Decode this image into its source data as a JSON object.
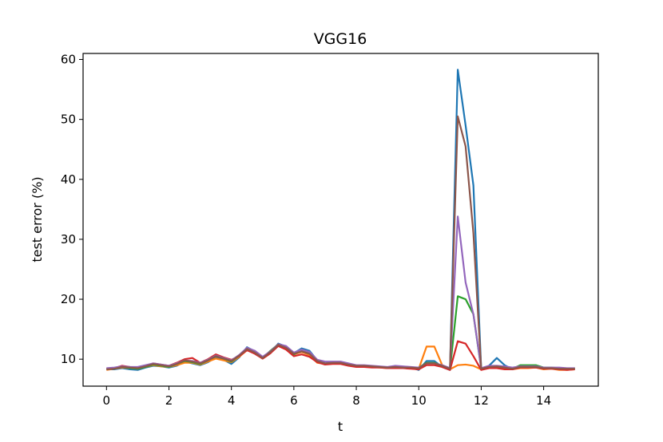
{
  "chart_data": {
    "type": "line",
    "title": "VGG16",
    "xlabel": "t",
    "ylabel": "test error (%)",
    "xlim": [
      -0.75,
      15.75
    ],
    "ylim": [
      5.5,
      61.0
    ],
    "xticks": [
      0,
      2,
      4,
      6,
      8,
      10,
      12,
      14
    ],
    "yticks": [
      10,
      20,
      30,
      40,
      50,
      60
    ],
    "grid": false,
    "legend": "none",
    "x": [
      0,
      0.25,
      0.5,
      0.75,
      1,
      1.25,
      1.5,
      1.75,
      2,
      2.25,
      2.5,
      2.75,
      3,
      3.25,
      3.5,
      3.75,
      4,
      4.25,
      4.5,
      4.75,
      5,
      5.25,
      5.5,
      5.75,
      6,
      6.25,
      6.5,
      6.75,
      7,
      7.25,
      7.5,
      7.75,
      8,
      8.25,
      8.5,
      8.75,
      9,
      9.25,
      9.5,
      9.75,
      10,
      10.25,
      10.5,
      10.75,
      11,
      11.25,
      11.5,
      11.75,
      12,
      12.25,
      12.5,
      12.75,
      13,
      13.25,
      13.5,
      13.75,
      14,
      14.25,
      14.5,
      14.75,
      15
    ],
    "series": [
      {
        "color": "#1f77b4",
        "values": [
          8.3,
          8.3,
          8.5,
          8.3,
          8.2,
          8.6,
          8.9,
          8.8,
          8.6,
          8.9,
          9.6,
          9.3,
          9.0,
          9.5,
          10.3,
          9.9,
          9.2,
          10.3,
          12.0,
          11.3,
          10.1,
          11.0,
          12.6,
          12.1,
          11.0,
          11.8,
          11.4,
          9.8,
          9.3,
          9.5,
          9.4,
          9.0,
          8.9,
          8.8,
          8.7,
          8.7,
          8.5,
          8.7,
          8.6,
          8.6,
          8.2,
          9.7,
          9.7,
          8.7,
          8.2,
          58.3,
          49.0,
          39.0,
          8.3,
          8.9,
          10.2,
          9.0,
          8.3,
          8.7,
          8.6,
          8.6,
          8.6,
          8.5,
          8.3,
          8.3,
          8.4
        ]
      },
      {
        "color": "#ff7f0e",
        "values": [
          8.2,
          8.4,
          8.6,
          8.5,
          8.4,
          8.7,
          9.0,
          8.8,
          8.7,
          9.0,
          9.4,
          9.4,
          9.1,
          9.6,
          10.1,
          9.8,
          9.5,
          10.4,
          11.5,
          11.0,
          10.1,
          11.0,
          12.4,
          12.0,
          10.8,
          11.2,
          10.7,
          9.4,
          9.2,
          9.3,
          9.3,
          9.0,
          8.8,
          8.8,
          8.7,
          8.6,
          8.5,
          8.6,
          8.5,
          8.5,
          8.4,
          12.1,
          12.1,
          9.0,
          8.3,
          9.0,
          9.1,
          8.9,
          8.3,
          8.5,
          8.6,
          8.5,
          8.3,
          8.5,
          8.5,
          8.6,
          8.3,
          8.4,
          8.2,
          8.2,
          8.3
        ]
      },
      {
        "color": "#2ca02c",
        "values": [
          8.4,
          8.4,
          8.7,
          8.5,
          8.4,
          8.7,
          9.1,
          8.9,
          8.7,
          9.2,
          9.7,
          9.5,
          9.2,
          9.8,
          10.5,
          10.1,
          9.6,
          10.6,
          11.8,
          11.2,
          10.2,
          11.4,
          12.5,
          11.9,
          10.8,
          11.5,
          11.0,
          9.7,
          9.2,
          9.5,
          9.5,
          9.1,
          8.8,
          8.9,
          8.8,
          8.7,
          8.6,
          8.8,
          8.6,
          8.6,
          8.6,
          9.4,
          9.4,
          8.9,
          8.3,
          20.5,
          20.0,
          17.5,
          8.4,
          8.6,
          8.7,
          8.6,
          8.4,
          9.0,
          9.0,
          9.0,
          8.6,
          8.6,
          8.5,
          8.4,
          8.5
        ]
      },
      {
        "color": "#d62728",
        "values": [
          8.4,
          8.5,
          8.9,
          8.7,
          8.6,
          8.9,
          9.3,
          9.1,
          8.9,
          9.4,
          10.0,
          10.2,
          9.4,
          10.0,
          10.8,
          10.3,
          9.9,
          10.5,
          11.5,
          10.9,
          10.1,
          11.0,
          12.2,
          11.6,
          10.5,
          10.8,
          10.4,
          9.5,
          9.1,
          9.2,
          9.2,
          8.9,
          8.7,
          8.7,
          8.6,
          8.6,
          8.5,
          8.5,
          8.5,
          8.4,
          8.3,
          9.0,
          9.0,
          8.7,
          8.2,
          13.0,
          12.6,
          10.5,
          8.2,
          8.5,
          8.5,
          8.3,
          8.3,
          8.6,
          8.6,
          8.6,
          8.4,
          8.4,
          8.3,
          8.2,
          8.3
        ]
      },
      {
        "color": "#9467bd",
        "values": [
          8.5,
          8.6,
          8.8,
          8.7,
          8.7,
          9.0,
          9.3,
          9.1,
          8.9,
          9.3,
          9.8,
          9.7,
          9.4,
          9.9,
          10.6,
          10.2,
          9.8,
          10.7,
          11.9,
          11.4,
          10.4,
          11.3,
          12.5,
          12.2,
          11.1,
          11.6,
          11.2,
          9.9,
          9.6,
          9.6,
          9.6,
          9.3,
          9.0,
          9.0,
          8.9,
          8.8,
          8.7,
          8.9,
          8.8,
          8.7,
          8.6,
          9.3,
          9.3,
          9.0,
          8.5,
          33.8,
          22.8,
          17.5,
          8.5,
          8.9,
          8.9,
          8.8,
          8.6,
          8.8,
          8.8,
          8.8,
          8.6,
          8.6,
          8.6,
          8.5,
          8.5
        ]
      },
      {
        "color": "#8c564b",
        "values": [
          8.3,
          8.4,
          8.7,
          8.6,
          8.5,
          8.8,
          9.2,
          9.0,
          8.8,
          9.2,
          9.8,
          9.6,
          9.3,
          9.8,
          10.5,
          10.1,
          9.7,
          10.6,
          11.7,
          11.1,
          10.2,
          11.2,
          12.4,
          11.9,
          10.9,
          11.3,
          10.9,
          9.7,
          9.3,
          9.4,
          9.4,
          9.1,
          8.9,
          8.9,
          8.8,
          8.7,
          8.6,
          8.7,
          8.6,
          8.6,
          8.5,
          9.3,
          9.3,
          8.9,
          8.4,
          50.5,
          45.5,
          31.0,
          8.4,
          8.7,
          8.8,
          8.6,
          8.4,
          8.7,
          8.7,
          8.7,
          8.5,
          8.5,
          8.4,
          8.4,
          8.4
        ]
      }
    ]
  }
}
